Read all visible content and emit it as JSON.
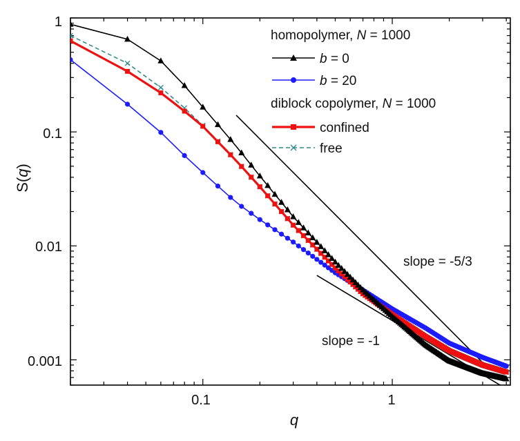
{
  "chart_data": {
    "type": "line",
    "xscale": "log",
    "yscale": "log",
    "xlim": [
      0.02,
      4.2
    ],
    "ylim": [
      0.0006,
      1.0
    ],
    "x_ticks": [
      0.1,
      1
    ],
    "x_tick_labels": [
      "0.1",
      "1"
    ],
    "y_ticks": [
      1,
      0.1,
      0.01,
      0.001
    ],
    "y_tick_labels": [
      "1",
      "0.1",
      "0.01",
      "0.001"
    ],
    "xlabel": "q",
    "ylabel_base": "S(",
    "ylabel_var": "q",
    "ylabel_end": ")",
    "ylabel": "S(q)",
    "grid": false,
    "legend_position": "top-right",
    "legend": {
      "group1_title_prefix": "homopolymer, ",
      "group1_title_var": "N",
      "group1_title_suffix": " = 1000",
      "group2_title_prefix": "diblock copolymer, ",
      "group2_title_var": "N",
      "group2_title_suffix": " = 1000"
    },
    "series": [
      {
        "name": "b = 0",
        "label_var": "b",
        "label_rest": " = 0",
        "color": "#000000",
        "marker": "triangle",
        "line_style": "solid",
        "points": [
          [
            0.02,
            0.88
          ],
          [
            0.04,
            0.65
          ],
          [
            0.06,
            0.42
          ],
          [
            0.08,
            0.255
          ],
          [
            0.1,
            0.165
          ],
          [
            0.15,
            0.075
          ],
          [
            0.2,
            0.041
          ],
          [
            0.3,
            0.018
          ],
          [
            0.5,
            0.0072
          ],
          [
            0.7,
            0.0041
          ],
          [
            1.0,
            0.0024
          ],
          [
            1.5,
            0.00135
          ],
          [
            2.0,
            0.00098
          ],
          [
            3.0,
            0.00076
          ],
          [
            4.0,
            0.00068
          ]
        ]
      },
      {
        "name": "b = 20",
        "label_var": "b",
        "label_rest": " = 20",
        "color": "#1c1cff",
        "marker": "circle",
        "line_style": "solid",
        "points": [
          [
            0.02,
            0.43
          ],
          [
            0.04,
            0.175
          ],
          [
            0.06,
            0.099
          ],
          [
            0.08,
            0.062
          ],
          [
            0.1,
            0.044
          ],
          [
            0.15,
            0.024
          ],
          [
            0.2,
            0.017
          ],
          [
            0.3,
            0.0108
          ],
          [
            0.5,
            0.0058
          ],
          [
            0.7,
            0.0041
          ],
          [
            1.0,
            0.0028
          ],
          [
            1.5,
            0.0019
          ],
          [
            2.0,
            0.0014
          ],
          [
            3.0,
            0.00105
          ],
          [
            4.0,
            0.00088
          ]
        ]
      },
      {
        "name": "confined",
        "color": "#ee1111",
        "marker": "square",
        "line_style": "solid",
        "points": [
          [
            0.02,
            0.63
          ],
          [
            0.04,
            0.34
          ],
          [
            0.06,
            0.22
          ],
          [
            0.08,
            0.152
          ],
          [
            0.1,
            0.112
          ],
          [
            0.15,
            0.056
          ],
          [
            0.2,
            0.033
          ],
          [
            0.3,
            0.0152
          ],
          [
            0.5,
            0.0064
          ],
          [
            0.7,
            0.0038
          ],
          [
            1.0,
            0.0025
          ],
          [
            1.5,
            0.0016
          ],
          [
            2.0,
            0.0012
          ],
          [
            3.0,
            0.0009
          ],
          [
            4.0,
            0.00078
          ]
        ]
      },
      {
        "name": "free",
        "color": "#2e8b8b",
        "marker": "x",
        "line_style": "dashed",
        "points": [
          [
            0.02,
            0.7
          ],
          [
            0.04,
            0.4
          ],
          [
            0.06,
            0.245
          ],
          [
            0.08,
            0.162
          ],
          [
            0.1,
            0.114
          ],
          [
            0.15,
            0.056
          ],
          [
            0.2,
            0.033
          ],
          [
            0.3,
            0.0152
          ],
          [
            0.5,
            0.0064
          ],
          [
            0.7,
            0.0038
          ],
          [
            1.0,
            0.0025
          ],
          [
            1.5,
            0.0016
          ],
          [
            2.0,
            0.0012
          ],
          [
            3.0,
            0.0009
          ],
          [
            4.0,
            0.00078
          ]
        ]
      }
    ],
    "reference_lines": [
      {
        "label": "slope = -5/3",
        "color": "#000000",
        "start": [
          0.15,
          0.14
        ],
        "end": [
          3.2,
          0.00085
        ]
      },
      {
        "label": "slope = -1",
        "color": "#000000",
        "start": [
          0.4,
          0.0055
        ],
        "end": [
          4.2,
          0.00053
        ]
      }
    ]
  }
}
